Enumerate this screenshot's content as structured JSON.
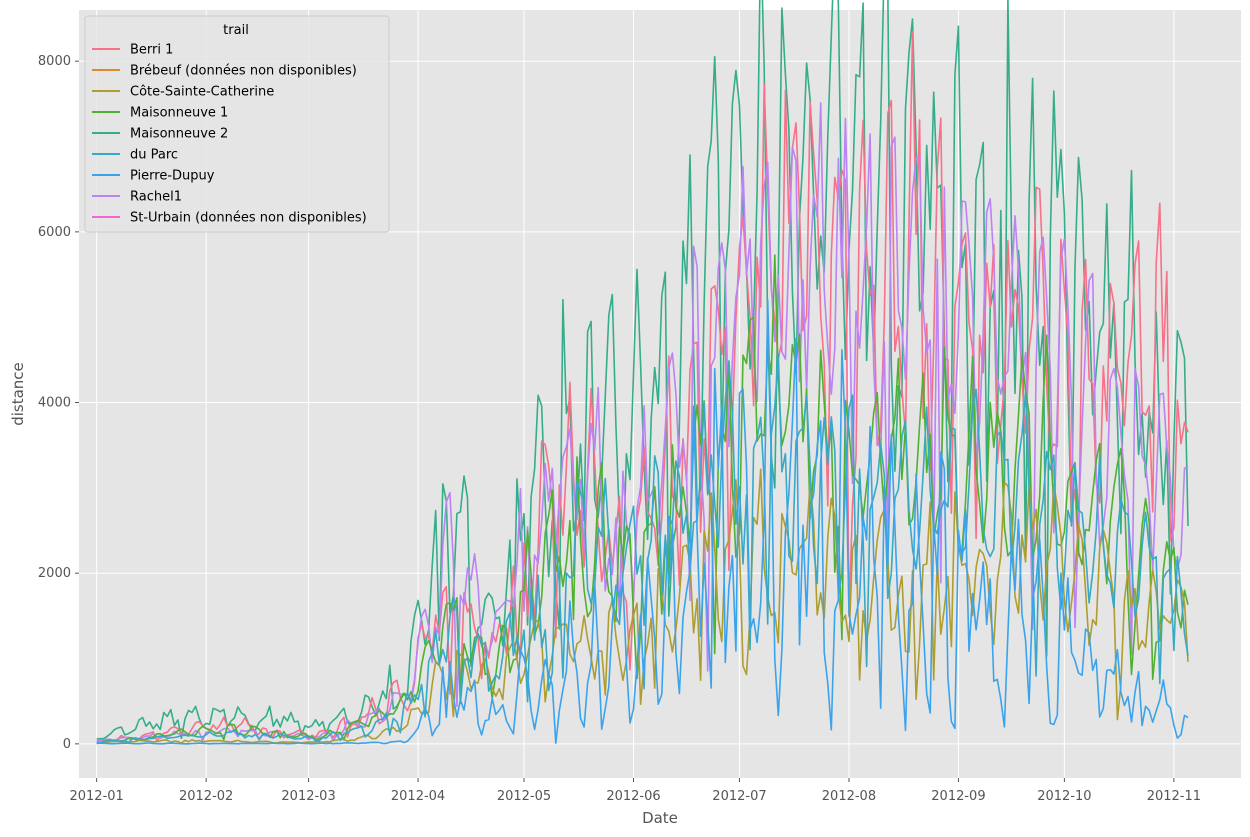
{
  "chart_data": {
    "type": "line",
    "xlabel": "Date",
    "ylabel": "distance",
    "x_range": [
      "2011-12-27",
      "2012-11-20"
    ],
    "ylim": [
      -400,
      8600
    ],
    "x_ticks": [
      "2012-01",
      "2012-02",
      "2012-03",
      "2012-04",
      "2012-05",
      "2012-06",
      "2012-07",
      "2012-08",
      "2012-09",
      "2012-10",
      "2012-11"
    ],
    "y_ticks": [
      "0",
      "2000",
      "4000",
      "6000",
      "8000"
    ],
    "y_tick_values": [
      0,
      2000,
      4000,
      6000,
      8000
    ],
    "grid": true,
    "background": "#e5e5e5",
    "legend": {
      "title": "trail",
      "placement": "top-left"
    },
    "date_start": "2012-01-01",
    "date_end": "2012-11-05",
    "series": [
      {
        "name": "Berri 1",
        "color": "#f77189",
        "base": [
          30,
          90,
          160,
          240,
          160,
          90,
          300,
          600,
          1800,
          1000,
          2400,
          3400,
          1900,
          3000,
          4300,
          5600,
          6200,
          5000,
          5600,
          5400,
          4700,
          4800,
          4000,
          4200,
          4600,
          3200
        ],
        "amp": 0.3,
        "phase": 0.4
      },
      {
        "name": "Brébeuf (données non disponibles)",
        "color": "#dc8932",
        "base": [],
        "amp": 0,
        "phase": 0
      },
      {
        "name": "Côte-Sainte-Catherine",
        "color": "#ae9d31",
        "base": [
          20,
          30,
          40,
          30,
          20,
          20,
          60,
          200,
          900,
          700,
          1100,
          1200,
          1300,
          1500,
          2100,
          2300,
          2200,
          1900,
          1900,
          2000,
          2100,
          2300,
          2000,
          1700,
          1500,
          1500
        ],
        "amp": 0.25,
        "phase": 1.1
      },
      {
        "name": "Maisonneuve 1",
        "color": "#50b131",
        "base": [
          15,
          60,
          130,
          180,
          120,
          70,
          220,
          450,
          1600,
          800,
          2000,
          2500,
          2000,
          2500,
          3300,
          4000,
          4000,
          3500,
          3400,
          3300,
          3300,
          3600,
          3100,
          2600,
          1900,
          1700
        ],
        "amp": 0.25,
        "phase": 2.0
      },
      {
        "name": "Maisonneuve 2",
        "color": "#36ad8a",
        "base": [
          60,
          200,
          320,
          360,
          300,
          200,
          400,
          700,
          2600,
          1500,
          3300,
          4200,
          3700,
          4300,
          5600,
          6400,
          6600,
          6000,
          6200,
          6000,
          5600,
          5800,
          5100,
          4700,
          3800,
          3000
        ],
        "amp": 0.3,
        "phase": 0.9
      },
      {
        "name": "du Parc",
        "color": "#38a9c5",
        "base": [
          20,
          60,
          90,
          120,
          90,
          60,
          180,
          380,
          1300,
          800,
          1800,
          2300,
          2200,
          2500,
          3100,
          3400,
          3300,
          3000,
          2900,
          2900,
          2900,
          3000,
          2700,
          2300,
          2000,
          1800
        ],
        "amp": 0.25,
        "phase": 1.6
      },
      {
        "name": "Pierre-Dupuy",
        "color": "#3ba3ec",
        "base": [
          5,
          5,
          5,
          5,
          5,
          5,
          10,
          20,
          600,
          300,
          700,
          1000,
          1100,
          1500,
          2400,
          2800,
          2700,
          2300,
          2200,
          2000,
          1800,
          1500,
          1100,
          700,
          400,
          200
        ],
        "amp": 0.55,
        "phase": 2.6
      },
      {
        "name": "Rachel1",
        "color": "#bb83f4",
        "base": [
          40,
          80,
          120,
          160,
          110,
          70,
          250,
          550,
          2100,
          1300,
          2600,
          3300,
          2500,
          3400,
          4500,
          5300,
          5600,
          5200,
          5300,
          5200,
          4800,
          4900,
          4300,
          3900,
          3300,
          2500
        ],
        "amp": 0.25,
        "phase": 0.2
      },
      {
        "name": "St-Urbain (données non disponibles)",
        "color": "#f564d4",
        "base": [],
        "amp": 0,
        "phase": 0
      }
    ]
  }
}
